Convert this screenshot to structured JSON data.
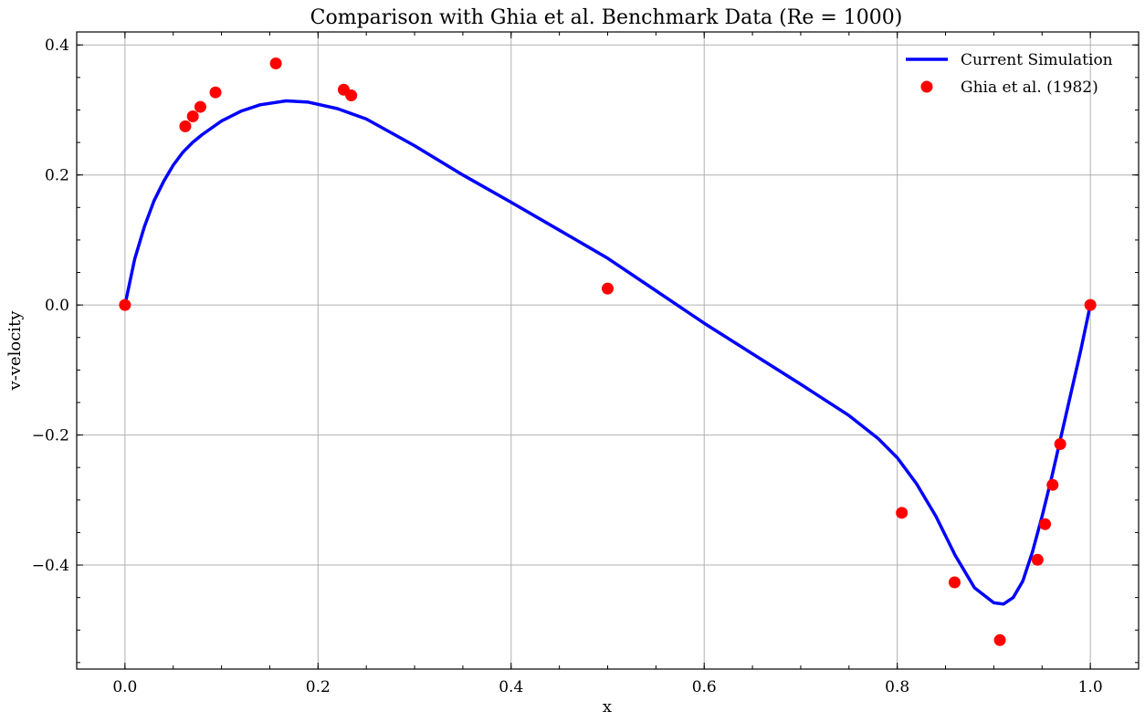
{
  "chart_data": {
    "type": "line",
    "title": "Comparison with Ghia et al. Benchmark Data (Re = 1000)",
    "xlabel": "x",
    "ylabel": "v-velocity",
    "xlim": [
      -0.05,
      1.05
    ],
    "ylim": [
      -0.56,
      0.42
    ],
    "x_ticks": [
      {
        "value": 0.0,
        "label": "0.0"
      },
      {
        "value": 0.2,
        "label": "0.2"
      },
      {
        "value": 0.4,
        "label": "0.4"
      },
      {
        "value": 0.6,
        "label": "0.6"
      },
      {
        "value": 0.8,
        "label": "0.8"
      },
      {
        "value": 1.0,
        "label": "1.0"
      }
    ],
    "y_ticks": [
      {
        "value": 0.4,
        "label": "0.4"
      },
      {
        "value": 0.2,
        "label": "0.2"
      },
      {
        "value": 0.0,
        "label": "0.0"
      },
      {
        "value": -0.2,
        "label": "−0.2"
      },
      {
        "value": -0.4,
        "label": "−0.4"
      }
    ],
    "grid": true,
    "legend_position": "top-right",
    "series": [
      {
        "name": "Current Simulation",
        "kind": "line",
        "color": "#0000ff",
        "x": [
          0.0,
          0.01,
          0.02,
          0.03,
          0.04,
          0.05,
          0.06,
          0.07,
          0.08,
          0.1,
          0.12,
          0.14,
          0.167,
          0.19,
          0.22,
          0.25,
          0.3,
          0.35,
          0.4,
          0.45,
          0.5,
          0.55,
          0.6,
          0.65,
          0.7,
          0.75,
          0.78,
          0.8,
          0.82,
          0.84,
          0.86,
          0.88,
          0.9,
          0.91,
          0.92,
          0.93,
          0.94,
          0.95,
          0.96,
          0.97,
          0.98,
          0.99,
          1.0
        ],
        "y": [
          0.0,
          0.07,
          0.12,
          0.16,
          0.19,
          0.215,
          0.235,
          0.25,
          0.262,
          0.283,
          0.298,
          0.308,
          0.314,
          0.312,
          0.302,
          0.286,
          0.245,
          0.2,
          0.158,
          0.115,
          0.072,
          0.022,
          -0.028,
          -0.075,
          -0.122,
          -0.17,
          -0.205,
          -0.235,
          -0.275,
          -0.325,
          -0.385,
          -0.435,
          -0.458,
          -0.46,
          -0.45,
          -0.425,
          -0.38,
          -0.325,
          -0.265,
          -0.2,
          -0.135,
          -0.07,
          0.0
        ]
      },
      {
        "name": "Ghia et al. (1982)",
        "kind": "scatter",
        "color": "#ff0000",
        "x": [
          0.0,
          0.0625,
          0.0703,
          0.0781,
          0.0938,
          0.1563,
          0.2266,
          0.2344,
          0.5,
          0.8047,
          0.8594,
          0.9063,
          0.9453,
          0.9531,
          0.9609,
          0.9688,
          1.0
        ],
        "y": [
          0.0,
          0.2749,
          0.29012,
          0.30475,
          0.32706,
          0.37156,
          0.33118,
          0.32235,
          0.02526,
          -0.31966,
          -0.42665,
          -0.5155,
          -0.39188,
          -0.33714,
          -0.27669,
          -0.21388,
          0.0
        ]
      }
    ]
  }
}
